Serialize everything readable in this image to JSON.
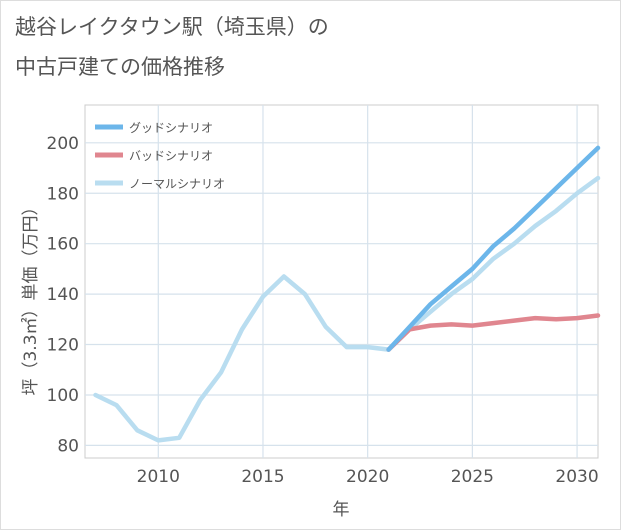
{
  "title": {
    "line1": "越谷レイクタウン駅（埼玉県）の",
    "line2": "中古戸建ての価格推移"
  },
  "chart_data": {
    "type": "line",
    "xlabel": "年",
    "ylabel": "坪（3.3㎡）単価（万円）",
    "xlim": [
      2006.5,
      2031
    ],
    "ylim": [
      75,
      215
    ],
    "x_ticks": [
      2010,
      2015,
      2020,
      2025,
      2030
    ],
    "y_ticks": [
      80,
      100,
      120,
      140,
      160,
      180,
      200
    ],
    "grid": true,
    "legend_position": "top-left",
    "series": [
      {
        "name": "グッドシナリオ",
        "color": "#6cb6ea",
        "x": [
          2021,
          2022,
          2023,
          2024,
          2025,
          2026,
          2027,
          2028,
          2029,
          2030,
          2031
        ],
        "values": [
          118,
          127,
          136,
          143,
          150,
          159,
          166,
          174,
          182,
          190,
          198
        ]
      },
      {
        "name": "バッドシナリオ",
        "color": "#e0868f",
        "x": [
          2021,
          2022,
          2023,
          2024,
          2025,
          2026,
          2027,
          2028,
          2029,
          2030,
          2031
        ],
        "values": [
          118,
          126,
          127.5,
          128,
          127.5,
          128.5,
          129.5,
          130.5,
          130,
          130.5,
          131.5
        ]
      },
      {
        "name": "ノーマルシナリオ",
        "color": "#b9ddf0",
        "x": [
          2007,
          2008,
          2009,
          2010,
          2011,
          2012,
          2013,
          2014,
          2015,
          2016,
          2017,
          2018,
          2019,
          2020,
          2021,
          2022,
          2023,
          2024,
          2025,
          2026,
          2027,
          2028,
          2029,
          2030,
          2031
        ],
        "values": [
          100,
          96,
          86,
          82,
          83,
          98,
          109,
          126,
          139,
          147,
          140,
          127,
          119,
          119,
          118,
          126,
          133,
          140,
          146,
          154,
          160,
          167,
          173,
          180,
          186
        ]
      }
    ]
  }
}
